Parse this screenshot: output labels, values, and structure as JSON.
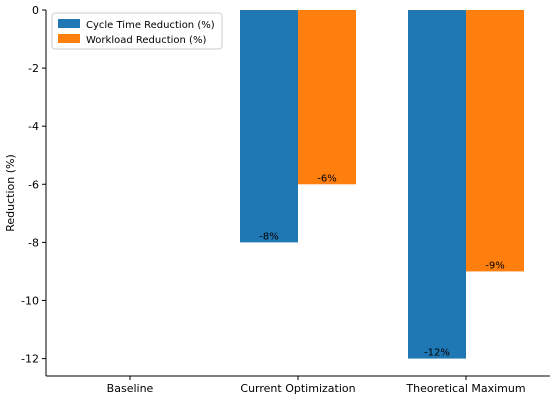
{
  "chart_data": {
    "type": "bar",
    "categories": [
      "Baseline",
      "Current Optimization",
      "Theoretical Maximum"
    ],
    "series": [
      {
        "name": "Cycle Time Reduction (%)",
        "values": [
          0,
          -8,
          -12
        ],
        "color": "#1f77b4",
        "labels": [
          "",
          "-8%",
          "-12%"
        ]
      },
      {
        "name": "Workload Reduction (%)",
        "values": [
          0,
          -6,
          -9
        ],
        "color": "#ff7f0e",
        "labels": [
          "",
          "-6%",
          "-9%"
        ]
      }
    ],
    "title": "",
    "xlabel": "",
    "ylabel": "Reduction (%)",
    "ylim": [
      -12.6,
      0
    ],
    "yticks": [
      0,
      -2,
      -4,
      -6,
      -8,
      -10,
      -12
    ],
    "ytick_labels": [
      "0",
      "-2",
      "-4",
      "-6",
      "-8",
      "-10",
      "-12"
    ],
    "grid": false,
    "legend_position": "top-left"
  }
}
